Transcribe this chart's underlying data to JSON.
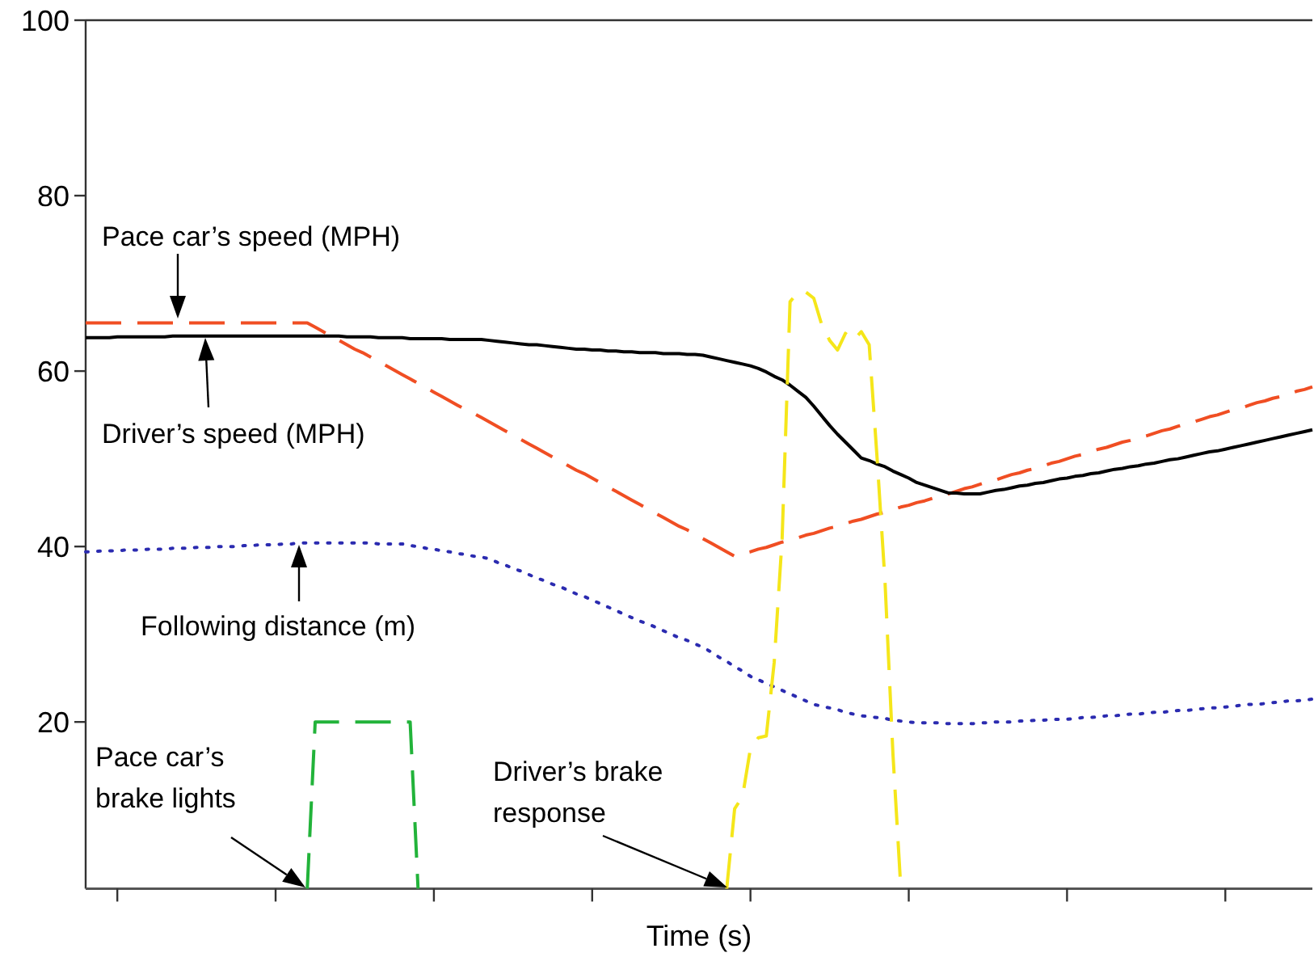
{
  "chart_data": {
    "type": "line",
    "xlabel": "Time (s)",
    "ylim": [
      1,
      100
    ],
    "yticks": [
      20,
      40,
      60,
      80,
      100
    ],
    "marker": "none",
    "categories": [
      null,
      null,
      null,
      null,
      null,
      null,
      null,
      null,
      null,
      null,
      null,
      null,
      null,
      null,
      null,
      null,
      null,
      null,
      null,
      null,
      null,
      null,
      null,
      null,
      null,
      null,
      null,
      null,
      null,
      null,
      null,
      null,
      null,
      null,
      null,
      null,
      null,
      null,
      null,
      null,
      null,
      null,
      null,
      null,
      null,
      null,
      null,
      null,
      null,
      null,
      null,
      null,
      null,
      null,
      null,
      null,
      null,
      null,
      null,
      null,
      null,
      null,
      null,
      null,
      null,
      null,
      null,
      null,
      null,
      null,
      null,
      null,
      null,
      null,
      null,
      null,
      null,
      null,
      null,
      null,
      null,
      null,
      null,
      null,
      null,
      null,
      null,
      null,
      null,
      null,
      null,
      null,
      null,
      null,
      null,
      null,
      null,
      null,
      null,
      null,
      null,
      null,
      null,
      null,
      null,
      null,
      null,
      null,
      null,
      null,
      null,
      null,
      null,
      null,
      null,
      null,
      null,
      null,
      null,
      null,
      null,
      null,
      null,
      null,
      null,
      null,
      null,
      null,
      null,
      null,
      null,
      null,
      null,
      null,
      null,
      null,
      null,
      null,
      null,
      null,
      null,
      null,
      null,
      null,
      null,
      null,
      null,
      null,
      null,
      null,
      null,
      null,
      null,
      null,
      null,
      null
    ],
    "series": [
      {
        "color": "#f04e23",
        "line_style": "dashed",
        "values": [
          65.5,
          65.5,
          65.5,
          65.5,
          65.5,
          65.5,
          65.5,
          65.5,
          65.5,
          65.5,
          65.5,
          65.5,
          65.5,
          65.5,
          65.5,
          65.5,
          65.5,
          65.5,
          65.5,
          65.5,
          65.5,
          65.5,
          65.5,
          65.5,
          65.5,
          65.5,
          65.5,
          65.5,
          65.5,
          65.0,
          64.5,
          64.0,
          63.5,
          63.0,
          62.5,
          62.1,
          61.6,
          61.1,
          60.6,
          60.1,
          59.6,
          59.1,
          58.6,
          58.1,
          57.6,
          57.1,
          56.6,
          56.1,
          55.6,
          55.2,
          54.7,
          54.2,
          53.7,
          53.2,
          52.7,
          52.2,
          51.7,
          51.2,
          50.7,
          50.2,
          49.7,
          49.2,
          48.7,
          48.3,
          47.8,
          47.3,
          46.8,
          46.3,
          45.8,
          45.3,
          44.8,
          44.3,
          43.8,
          43.3,
          42.8,
          42.3,
          41.9,
          41.4,
          40.9,
          40.4,
          39.9,
          39.4,
          38.9,
          39.2,
          39.4,
          39.7,
          39.9,
          40.2,
          40.5,
          40.7,
          41.0,
          41.3,
          41.5,
          41.8,
          42.1,
          42.3,
          42.6,
          42.9,
          43.1,
          43.4,
          43.7,
          43.9,
          44.2,
          44.5,
          44.7,
          45.0,
          45.2,
          45.5,
          45.8,
          46.0,
          46.3,
          46.6,
          46.8,
          47.1,
          47.4,
          47.6,
          47.9,
          48.2,
          48.4,
          48.7,
          48.9,
          49.2,
          49.5,
          49.7,
          50.0,
          50.3,
          50.5,
          50.8,
          51.1,
          51.3,
          51.6,
          51.9,
          52.1,
          52.4,
          52.6,
          52.9,
          53.2,
          53.4,
          53.7,
          54.0,
          54.2,
          54.5,
          54.8,
          55.0,
          55.3,
          55.6,
          55.8,
          56.1,
          56.4,
          56.6,
          56.9,
          57.1,
          57.4,
          57.7,
          57.9,
          58.2
        ]
      },
      {
        "color": "#000000",
        "line_style": "solid",
        "values": [
          63.8,
          63.8,
          63.8,
          63.8,
          63.9,
          63.9,
          63.9,
          63.9,
          63.9,
          63.9,
          63.9,
          64.0,
          64.0,
          64.0,
          64.0,
          64.0,
          64.0,
          64.0,
          64.0,
          64.0,
          64.0,
          64.0,
          64.0,
          64.0,
          64.0,
          64.0,
          64.0,
          64.0,
          64.0,
          64.0,
          64.0,
          64.0,
          64.0,
          63.9,
          63.9,
          63.9,
          63.9,
          63.8,
          63.8,
          63.8,
          63.8,
          63.7,
          63.7,
          63.7,
          63.7,
          63.7,
          63.6,
          63.6,
          63.6,
          63.6,
          63.6,
          63.5,
          63.4,
          63.3,
          63.2,
          63.1,
          63.0,
          63.0,
          62.9,
          62.8,
          62.7,
          62.6,
          62.5,
          62.5,
          62.4,
          62.4,
          62.3,
          62.3,
          62.2,
          62.2,
          62.1,
          62.1,
          62.1,
          62.0,
          62.0,
          62.0,
          61.9,
          61.9,
          61.8,
          61.6,
          61.4,
          61.2,
          61.0,
          60.8,
          60.6,
          60.3,
          59.9,
          59.4,
          59.0,
          58.4,
          57.7,
          57.0,
          56.0,
          54.9,
          53.8,
          52.8,
          51.9,
          51.0,
          50.1,
          49.8,
          49.4,
          49.1,
          48.6,
          48.2,
          47.8,
          47.3,
          47.0,
          46.7,
          46.4,
          46.1,
          46.1,
          46.0,
          46.0,
          46.0,
          46.2,
          46.4,
          46.5,
          46.7,
          46.9,
          47.0,
          47.2,
          47.3,
          47.5,
          47.7,
          47.8,
          48.0,
          48.1,
          48.3,
          48.4,
          48.6,
          48.8,
          48.9,
          49.1,
          49.2,
          49.4,
          49.5,
          49.7,
          49.9,
          50.0,
          50.2,
          50.4,
          50.6,
          50.8,
          50.9,
          51.1,
          51.3,
          51.5,
          51.7,
          51.9,
          52.1,
          52.3,
          52.5,
          52.7,
          52.9,
          53.1,
          53.3
        ]
      },
      {
        "color": "#2b2bb0",
        "line_style": "dotted",
        "values": [
          39.4,
          39.4,
          39.5,
          39.5,
          39.5,
          39.6,
          39.6,
          39.6,
          39.7,
          39.7,
          39.7,
          39.8,
          39.8,
          39.8,
          39.9,
          39.9,
          39.9,
          40.0,
          40.0,
          40.0,
          40.1,
          40.1,
          40.2,
          40.2,
          40.2,
          40.3,
          40.3,
          40.4,
          40.4,
          40.4,
          40.4,
          40.4,
          40.4,
          40.4,
          40.4,
          40.4,
          40.4,
          40.3,
          40.3,
          40.3,
          40.3,
          40.1,
          40.0,
          39.8,
          39.7,
          39.5,
          39.4,
          39.2,
          39.1,
          38.9,
          38.8,
          38.6,
          38.2,
          37.9,
          37.5,
          37.2,
          36.8,
          36.4,
          36.1,
          35.7,
          35.4,
          35.0,
          34.6,
          34.3,
          33.9,
          33.5,
          33.1,
          32.7,
          32.3,
          31.9,
          31.5,
          31.2,
          30.8,
          30.4,
          30.0,
          29.6,
          29.3,
          28.9,
          28.5,
          28.0,
          27.4,
          26.9,
          26.3,
          25.8,
          25.2,
          24.8,
          24.4,
          24.0,
          23.6,
          23.2,
          22.8,
          22.4,
          22.0,
          21.8,
          21.6,
          21.4,
          21.1,
          20.9,
          20.7,
          20.6,
          20.5,
          20.4,
          20.2,
          20.1,
          20.0,
          19.9,
          19.9,
          19.9,
          19.9,
          19.8,
          19.8,
          19.8,
          19.8,
          19.9,
          19.9,
          20.0,
          20.0,
          20.0,
          20.1,
          20.1,
          20.2,
          20.2,
          20.3,
          20.3,
          20.3,
          20.4,
          20.5,
          20.5,
          20.6,
          20.7,
          20.7,
          20.8,
          20.9,
          20.9,
          21.0,
          21.1,
          21.1,
          21.2,
          21.3,
          21.3,
          21.4,
          21.5,
          21.6,
          21.6,
          21.7,
          21.8,
          21.9,
          22.0,
          22.0,
          22.1,
          22.2,
          22.3,
          22.4,
          22.4,
          22.5,
          22.6
        ]
      },
      {
        "color": "#22b33a",
        "line_style": "dashed",
        "values": [
          null,
          null,
          null,
          null,
          null,
          null,
          null,
          null,
          null,
          null,
          null,
          null,
          null,
          null,
          null,
          null,
          null,
          null,
          null,
          null,
          null,
          null,
          null,
          null,
          null,
          null,
          null,
          null,
          1,
          20,
          20,
          20,
          20,
          20,
          20,
          20,
          20,
          20,
          20,
          20,
          20,
          20,
          1,
          null,
          null,
          null,
          null,
          null,
          null,
          null,
          null,
          null,
          null,
          null,
          null,
          null,
          null,
          null,
          null,
          null,
          null,
          null,
          null,
          null,
          null,
          null,
          null,
          null,
          null,
          null,
          null,
          null,
          null,
          null,
          null,
          null,
          null,
          null,
          null,
          null,
          null,
          null,
          null,
          null,
          null,
          null,
          null,
          null,
          null,
          null,
          null,
          null,
          null,
          null,
          null,
          null,
          null,
          null,
          null,
          null,
          null,
          null,
          null,
          null,
          null,
          null,
          null,
          null,
          null,
          null,
          null,
          null,
          null,
          null,
          null,
          null,
          null,
          null,
          null,
          null,
          null,
          null,
          null,
          null,
          null,
          null,
          null,
          null,
          null,
          null,
          null,
          null,
          null,
          null,
          null,
          null,
          null,
          null,
          null,
          null,
          null,
          null,
          null,
          null,
          null,
          null,
          null,
          null,
          null,
          null,
          null,
          null,
          null,
          null,
          null,
          null
        ]
      },
      {
        "color": "#f5e61a",
        "line_style": "dashed",
        "values": [
          null,
          null,
          null,
          null,
          null,
          null,
          null,
          null,
          null,
          null,
          null,
          null,
          null,
          null,
          null,
          null,
          null,
          null,
          null,
          null,
          null,
          null,
          null,
          null,
          null,
          null,
          null,
          null,
          null,
          null,
          null,
          null,
          null,
          null,
          null,
          null,
          null,
          null,
          null,
          null,
          null,
          null,
          null,
          null,
          null,
          null,
          null,
          null,
          null,
          null,
          null,
          null,
          null,
          null,
          null,
          null,
          null,
          null,
          null,
          null,
          null,
          null,
          null,
          null,
          null,
          null,
          null,
          null,
          null,
          null,
          null,
          null,
          null,
          null,
          null,
          null,
          null,
          null,
          null,
          null,
          null,
          1,
          10.1,
          11.5,
          17.0,
          18.2,
          18.4,
          26.8,
          40.9,
          67.9,
          69.0,
          69.0,
          68.3,
          65.3,
          63.5,
          62.4,
          64.3,
          63.5,
          64.5,
          63.0,
          50.1,
          36.0,
          16.4,
          1,
          null,
          null,
          null,
          null,
          null,
          null,
          null,
          null,
          null,
          null,
          null,
          null,
          null,
          null,
          null,
          null,
          null,
          null,
          null,
          null,
          null,
          null,
          null,
          null,
          null,
          null,
          null,
          null,
          null,
          null,
          null,
          null,
          null,
          null,
          null,
          null,
          null,
          null,
          null,
          null,
          null,
          null,
          null,
          null,
          null,
          null,
          null,
          null,
          null,
          null,
          null,
          null
        ]
      }
    ],
    "annotations": [
      "Pace car’s speed (MPH)",
      "Driver’s speed (MPH)",
      "Following distance (m)",
      "Pace car’s\nbrake lights",
      "Driver’s brake\nresponse"
    ]
  }
}
